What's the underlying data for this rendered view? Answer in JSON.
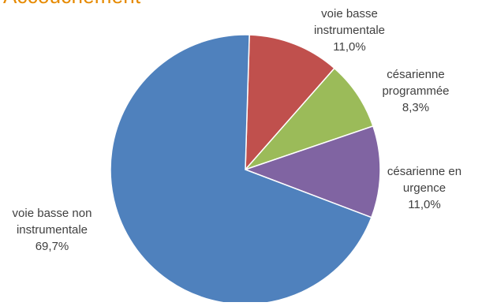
{
  "chart_data": {
    "type": "pie",
    "title": "Accouchement",
    "slices": [
      {
        "label": "voie basse instrumentale",
        "value": 11.0,
        "display": "11,0%",
        "color": "#C0504D"
      },
      {
        "label": "césarienne programmée",
        "value": 8.3,
        "display": "8,3%",
        "color": "#9BBB59"
      },
      {
        "label": "césarienne en urgence",
        "value": 11.0,
        "display": "11,0%",
        "color": "#8064A2"
      },
      {
        "label": "voie basse non instrumentale",
        "value": 69.7,
        "display": "69,7%",
        "color": "#4F81BD"
      }
    ],
    "label_text": [
      [
        "voie basse",
        "instrumentale",
        "11,0%"
      ],
      [
        "césarienne",
        "programmée",
        "8,3%"
      ],
      [
        "césarienne en",
        "urgence",
        "11,0%"
      ],
      [
        "voie basse non",
        "instrumentale",
        "69,7%"
      ]
    ],
    "legend": "none"
  }
}
